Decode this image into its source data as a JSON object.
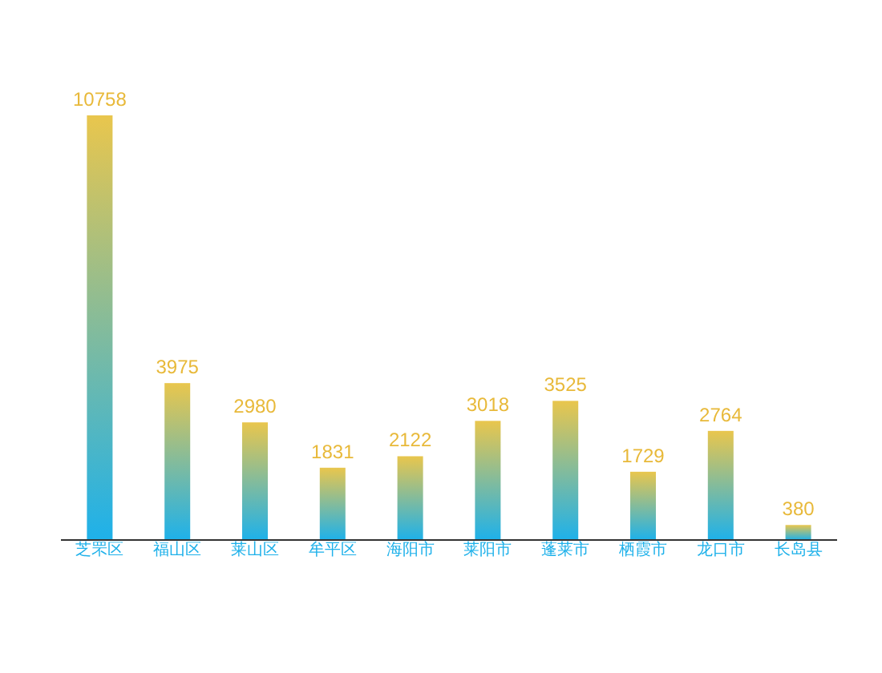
{
  "chart_data": {
    "type": "bar",
    "categories": [
      "芝罘区",
      "福山区",
      "莱山区",
      "牟平区",
      "海阳市",
      "莱阳市",
      "蓬莱市",
      "栖霞市",
      "龙口市",
      "长岛县"
    ],
    "series": [
      {
        "color": "#1eb1ea",
        "values": [
          10758,
          3975,
          2980,
          1831,
          2122,
          3018,
          3525,
          1729,
          2764,
          380
        ]
      }
    ],
    "data_labels": true
  }
}
